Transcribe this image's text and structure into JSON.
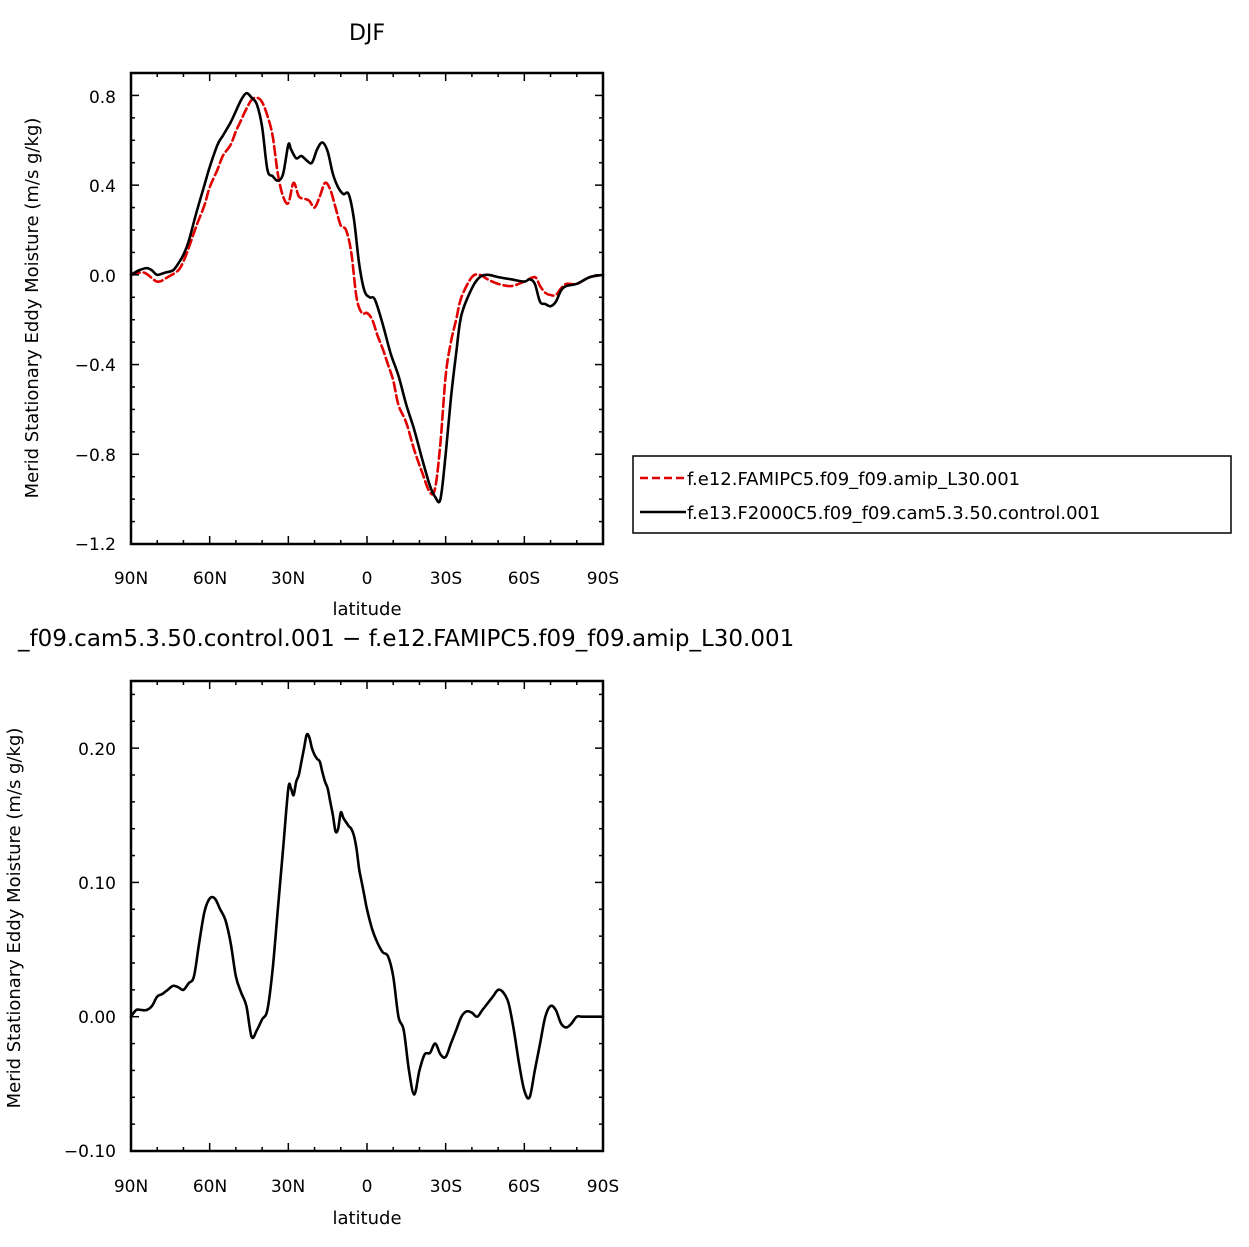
{
  "chart_data": [
    {
      "type": "line",
      "title": "DJF",
      "xlabel": "latitude",
      "ylabel": "Merid Stationary Eddy Moisture (m/s g/kg)",
      "xlim": [
        90,
        -90
      ],
      "ylim": [
        -1.2,
        0.9
      ],
      "xticks": [
        90,
        60,
        30,
        0,
        -30,
        -60,
        -90
      ],
      "xtick_labels": [
        "90N",
        "60N",
        "30N",
        "0",
        "30S",
        "60S",
        "90S"
      ],
      "yticks": [
        0.8,
        0.4,
        0.0,
        -0.4,
        -0.8,
        -1.2
      ],
      "ytick_labels": [
        "0.8",
        "0.4",
        "0.0",
        "−0.4",
        "−0.8",
        "−1.2"
      ],
      "grid": false,
      "legend": "right",
      "series": [
        {
          "name": "f.e12.FAMIPC5.f09_f09.amip_L30.001",
          "color": "#e00000",
          "dash": "dashed",
          "x": [
            90,
            85,
            80,
            76,
            72,
            70,
            68,
            65,
            62,
            60,
            57,
            55,
            52,
            50,
            48,
            46,
            44,
            42,
            40,
            38,
            36,
            34,
            32,
            30,
            28,
            26,
            24,
            22,
            20,
            18,
            16,
            14,
            12,
            10,
            8,
            6,
            4,
            2,
            0,
            -2,
            -4,
            -6,
            -8,
            -10,
            -12,
            -15,
            -18,
            -21,
            -24,
            -26,
            -28,
            -30,
            -32,
            -34,
            -36,
            -40,
            -43,
            -46,
            -50,
            -55,
            -60,
            -64,
            -66,
            -68,
            -70,
            -72,
            -74,
            -76,
            -80,
            -85,
            -90
          ],
          "y": [
            0.0,
            0.01,
            -0.03,
            -0.01,
            0.02,
            0.06,
            0.12,
            0.22,
            0.31,
            0.39,
            0.47,
            0.53,
            0.58,
            0.64,
            0.69,
            0.74,
            0.78,
            0.79,
            0.77,
            0.71,
            0.62,
            0.45,
            0.35,
            0.32,
            0.41,
            0.35,
            0.34,
            0.33,
            0.3,
            0.35,
            0.41,
            0.38,
            0.3,
            0.22,
            0.2,
            0.1,
            -0.1,
            -0.17,
            -0.17,
            -0.2,
            -0.27,
            -0.33,
            -0.4,
            -0.47,
            -0.58,
            -0.66,
            -0.78,
            -0.88,
            -0.97,
            -0.95,
            -0.75,
            -0.45,
            -0.3,
            -0.2,
            -0.1,
            -0.01,
            0.0,
            -0.02,
            -0.04,
            -0.05,
            -0.03,
            -0.01,
            -0.05,
            -0.08,
            -0.09,
            -0.09,
            -0.06,
            -0.04,
            -0.04,
            -0.01,
            0.0
          ]
        },
        {
          "name": "f.e13.F2000C5.f09_f09.cam5.3.50.control.001",
          "color": "#000000",
          "dash": "solid",
          "x": [
            90,
            87,
            84,
            82,
            80,
            77,
            74,
            72,
            70,
            68,
            65,
            62,
            60,
            57,
            55,
            52,
            50,
            48,
            46,
            44,
            42,
            40,
            38,
            36,
            34,
            32,
            30,
            29,
            27,
            25,
            23,
            21,
            19,
            17,
            15,
            13,
            11,
            9,
            7,
            5,
            3,
            1,
            -1,
            -3,
            -6,
            -9,
            -12,
            -15,
            -18,
            -21,
            -24,
            -26,
            -28,
            -30,
            -32,
            -34,
            -36,
            -40,
            -43,
            -46,
            -50,
            -55,
            -60,
            -62,
            -64,
            -66,
            -68,
            -70,
            -72,
            -74,
            -76,
            -80,
            -85,
            -90
          ],
          "y": [
            0.0,
            0.02,
            0.03,
            0.02,
            0.0,
            0.01,
            0.02,
            0.05,
            0.09,
            0.15,
            0.28,
            0.4,
            0.48,
            0.58,
            0.62,
            0.68,
            0.73,
            0.78,
            0.81,
            0.79,
            0.76,
            0.66,
            0.47,
            0.44,
            0.42,
            0.45,
            0.58,
            0.56,
            0.52,
            0.53,
            0.51,
            0.5,
            0.56,
            0.59,
            0.55,
            0.45,
            0.39,
            0.36,
            0.36,
            0.25,
            0.05,
            -0.07,
            -0.1,
            -0.11,
            -0.22,
            -0.35,
            -0.45,
            -0.58,
            -0.69,
            -0.82,
            -0.94,
            -0.99,
            -1.0,
            -0.8,
            -0.55,
            -0.35,
            -0.18,
            -0.06,
            -0.01,
            0.0,
            -0.01,
            -0.02,
            -0.03,
            -0.02,
            -0.04,
            -0.12,
            -0.13,
            -0.14,
            -0.12,
            -0.07,
            -0.05,
            -0.04,
            -0.01,
            0.0
          ]
        }
      ]
    },
    {
      "type": "line",
      "title": "_f09.cam5.3.50.control.001 − f.e12.FAMIPC5.f09_f09.amip_L30.001",
      "xlabel": "latitude",
      "ylabel": "Merid Stationary Eddy Moisture (m/s g/kg)",
      "xlim": [
        90,
        -90
      ],
      "ylim": [
        -0.1,
        0.25
      ],
      "xticks": [
        90,
        60,
        30,
        0,
        -30,
        -60,
        -90
      ],
      "xtick_labels": [
        "90N",
        "60N",
        "30N",
        "0",
        "30S",
        "60S",
        "90S"
      ],
      "yticks": [
        0.2,
        0.1,
        0.0,
        -0.1
      ],
      "ytick_labels": [
        "0.20",
        "0.10",
        "0.00",
        "−0.10"
      ],
      "grid": false,
      "series": [
        {
          "color": "#000000",
          "dash": "solid",
          "x": [
            90,
            88,
            86,
            84,
            82,
            80,
            78,
            76,
            74,
            72,
            70,
            68,
            66,
            64,
            62,
            60,
            58,
            56,
            54,
            52,
            50,
            48,
            46,
            44,
            42,
            40,
            38,
            36,
            34,
            32,
            30,
            29,
            28,
            27,
            26,
            25,
            24,
            23,
            22,
            21,
            20,
            19,
            18,
            17,
            16,
            15,
            14,
            13,
            12,
            11,
            10,
            9,
            8,
            7,
            6,
            5,
            4,
            3,
            2,
            1,
            0,
            -2,
            -4,
            -6,
            -8,
            -10,
            -12,
            -14,
            -16,
            -18,
            -20,
            -22,
            -24,
            -26,
            -28,
            -30,
            -32,
            -34,
            -36,
            -38,
            -40,
            -42,
            -44,
            -46,
            -48,
            -50,
            -52,
            -54,
            -56,
            -58,
            -60,
            -62,
            -64,
            -66,
            -68,
            -70,
            -72,
            -74,
            -76,
            -78,
            -80,
            -82,
            -84,
            -86,
            -88,
            -90
          ],
          "y": [
            0.0,
            0.005,
            0.005,
            0.005,
            0.008,
            0.015,
            0.017,
            0.02,
            0.023,
            0.022,
            0.02,
            0.025,
            0.03,
            0.055,
            0.078,
            0.088,
            0.088,
            0.08,
            0.072,
            0.055,
            0.03,
            0.018,
            0.008,
            -0.015,
            -0.01,
            -0.002,
            0.005,
            0.035,
            0.08,
            0.125,
            0.17,
            0.17,
            0.165,
            0.175,
            0.18,
            0.19,
            0.2,
            0.21,
            0.208,
            0.2,
            0.195,
            0.192,
            0.19,
            0.182,
            0.175,
            0.17,
            0.16,
            0.15,
            0.138,
            0.14,
            0.152,
            0.148,
            0.145,
            0.142,
            0.14,
            0.135,
            0.125,
            0.11,
            0.1,
            0.09,
            0.08,
            0.065,
            0.055,
            0.048,
            0.045,
            0.03,
            0.0,
            -0.01,
            -0.04,
            -0.058,
            -0.04,
            -0.028,
            -0.027,
            -0.02,
            -0.028,
            -0.03,
            -0.02,
            -0.01,
            0.0,
            0.004,
            0.003,
            0.0,
            0.005,
            0.01,
            0.015,
            0.02,
            0.018,
            0.01,
            -0.01,
            -0.035,
            -0.055,
            -0.06,
            -0.04,
            -0.02,
            0.0,
            0.008,
            0.005,
            -0.005,
            -0.008,
            -0.005,
            0.0,
            0.0,
            0.0,
            0.0,
            0.0,
            0.0
          ]
        }
      ]
    }
  ]
}
